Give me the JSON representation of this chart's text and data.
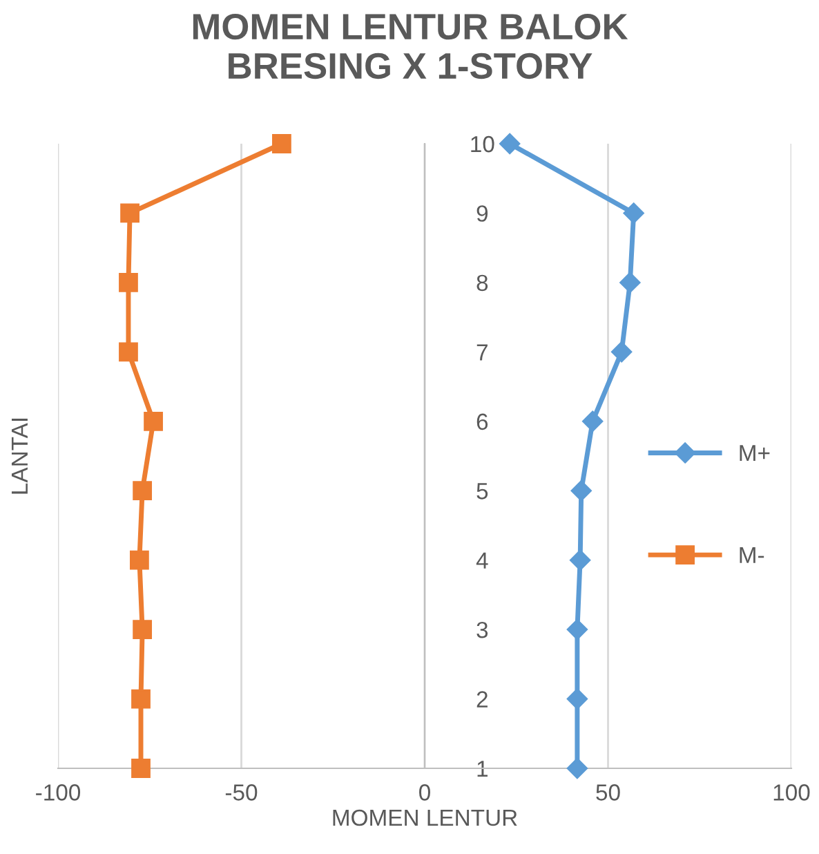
{
  "chart_data": {
    "type": "line",
    "title": "MOMEN LENTUR BALOK\nBRESING X 1-STORY",
    "xlabel": "MOMEN LENTUR",
    "ylabel": "LANTAI",
    "xlim": [
      -100,
      100
    ],
    "xticks": [
      -100,
      -50,
      0,
      50,
      100
    ],
    "ylim": [
      1,
      10
    ],
    "yticks": [
      1,
      2,
      3,
      4,
      5,
      6,
      7,
      8,
      9,
      10
    ],
    "grid": "x",
    "legend": "right",
    "series": [
      {
        "name": "M+",
        "color": "#5b9bd5",
        "marker": "diamond",
        "x": [
          41.6,
          41.6,
          41.6,
          42.4,
          42.7,
          45.8,
          53.7,
          56,
          57,
          23.2
        ],
        "values": [
          1,
          2,
          3,
          4,
          5,
          6,
          7,
          8,
          9,
          10
        ]
      },
      {
        "name": "M-",
        "color": "#ed7d31",
        "marker": "square",
        "x": [
          -77.4,
          -77.4,
          -77,
          -77.8,
          -77,
          -74,
          -80.8,
          -80.8,
          -80.4,
          -39
        ],
        "values": [
          1,
          2,
          3,
          4,
          5,
          6,
          7,
          8,
          9,
          10
        ]
      }
    ]
  }
}
